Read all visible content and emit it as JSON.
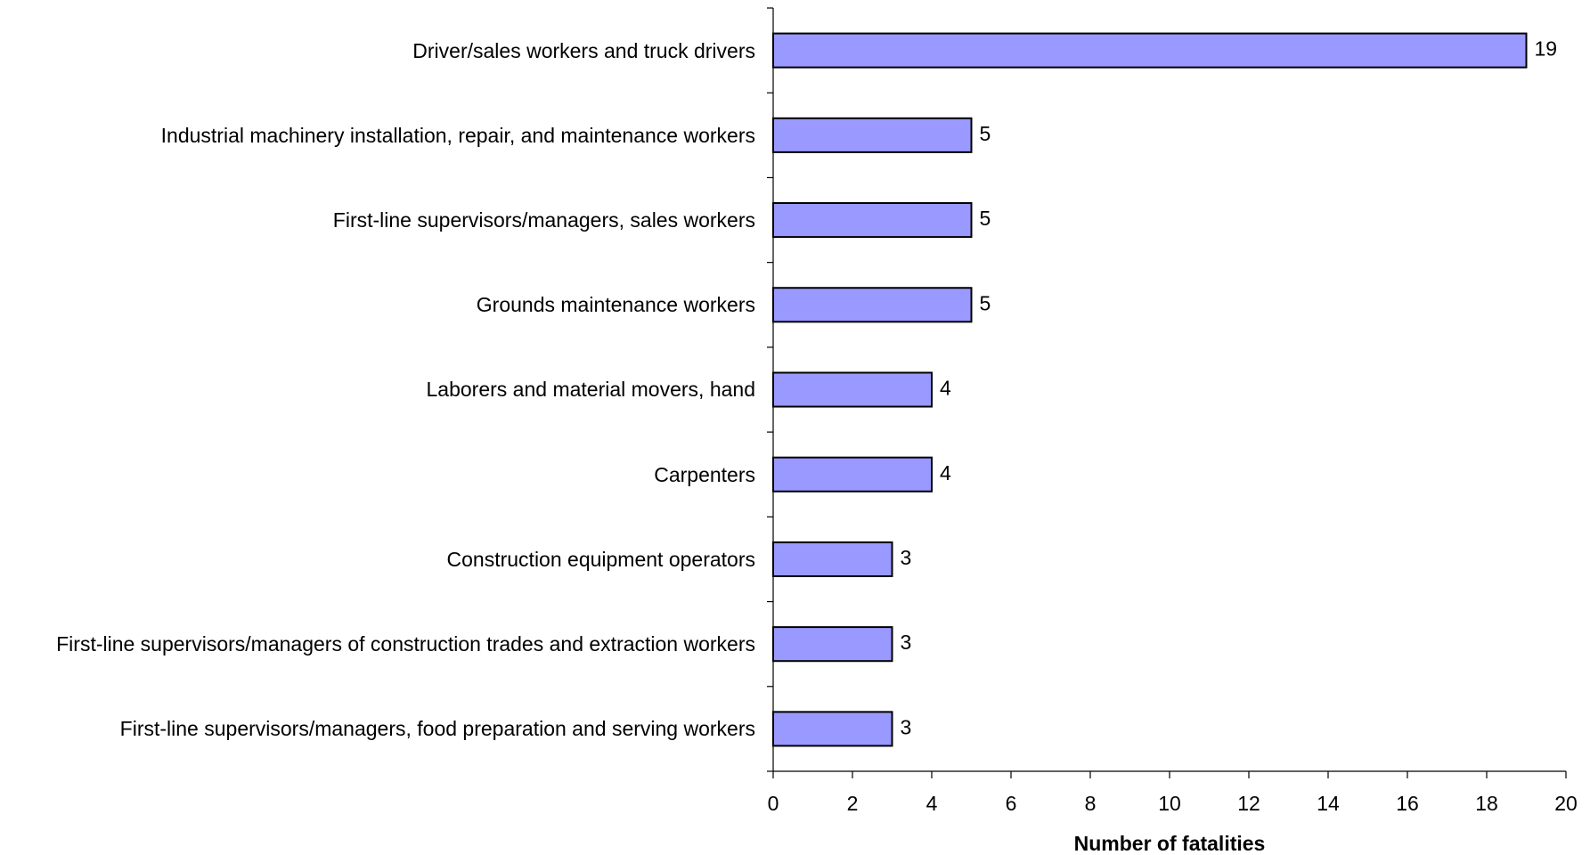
{
  "chart_data": {
    "type": "bar",
    "orientation": "horizontal",
    "categories": [
      "Driver/sales workers and truck drivers",
      "Industrial machinery installation, repair, and maintenance workers",
      "First-line supervisors/managers, sales workers",
      "Grounds maintenance workers",
      "Laborers and material movers, hand",
      "Carpenters",
      "Construction equipment operators",
      "First-line supervisors/managers of construction trades and extraction workers",
      "First-line supervisors/managers, food preparation and serving workers"
    ],
    "values": [
      19,
      5,
      5,
      5,
      4,
      4,
      3,
      3,
      3
    ],
    "color": "#9999ff",
    "xlabel": "Number of fatalities",
    "xlim": [
      0,
      20
    ],
    "xticks": [
      0,
      2,
      4,
      6,
      8,
      10,
      12,
      14,
      16,
      18,
      20
    ]
  }
}
